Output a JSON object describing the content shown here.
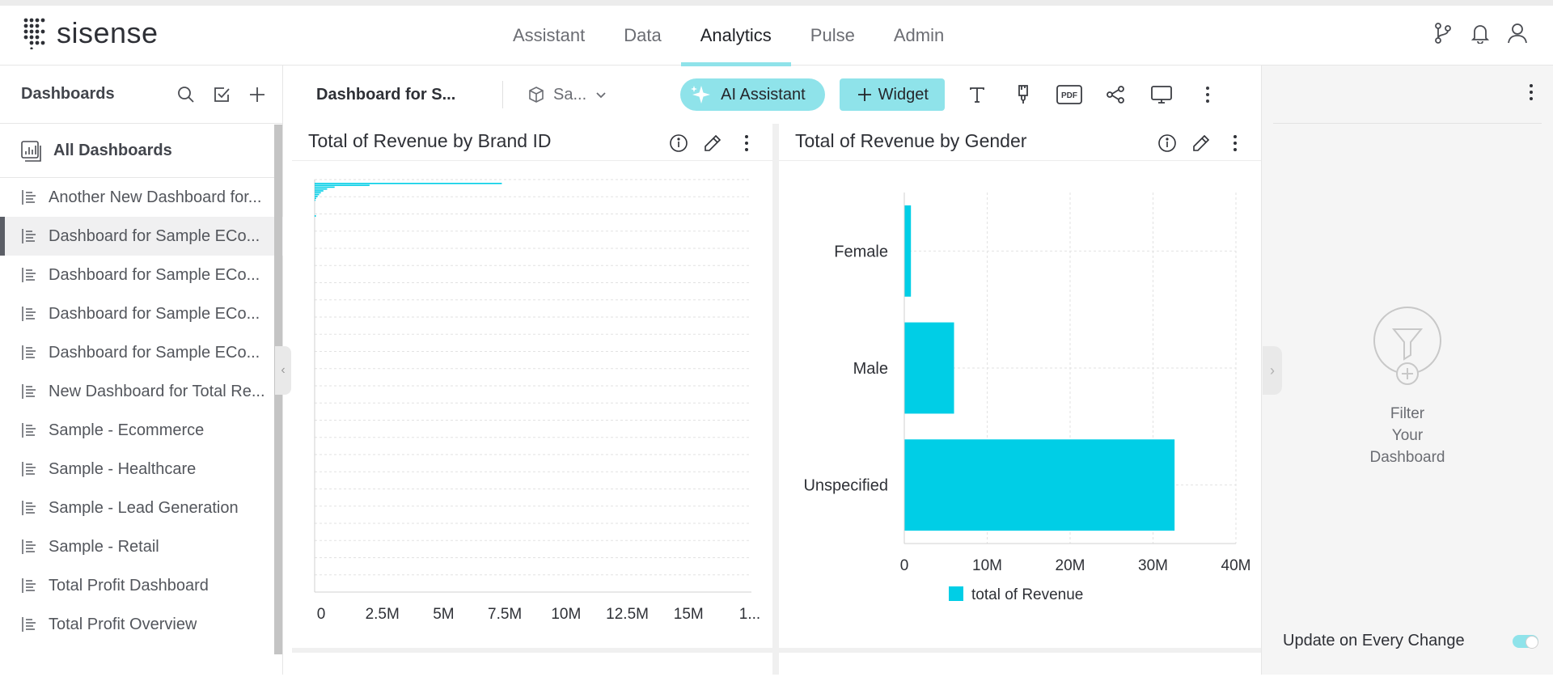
{
  "app": {
    "logo_text": "sisense",
    "nav": [
      {
        "label": "Assistant",
        "active": false
      },
      {
        "label": "Data",
        "active": false
      },
      {
        "label": "Analytics",
        "active": true
      },
      {
        "label": "Pulse",
        "active": false
      },
      {
        "label": "Admin",
        "active": false
      }
    ],
    "top_icons": [
      "git-branch-icon",
      "bell-icon",
      "user-icon"
    ],
    "accent": "#8fe3ea"
  },
  "sidebar": {
    "title": "Dashboards",
    "all_dashboards": "All Dashboards",
    "items": [
      {
        "label": "Another New Dashboard for...",
        "selected": false
      },
      {
        "label": "Dashboard for Sample ECo...",
        "selected": true
      },
      {
        "label": "Dashboard for Sample ECo...",
        "selected": false
      },
      {
        "label": "Dashboard for Sample ECo...",
        "selected": false
      },
      {
        "label": "Dashboard for Sample ECo...",
        "selected": false
      },
      {
        "label": "New Dashboard for Total Re...",
        "selected": false
      },
      {
        "label": "Sample - Ecommerce",
        "selected": false
      },
      {
        "label": "Sample - Healthcare",
        "selected": false
      },
      {
        "label": "Sample - Lead Generation",
        "selected": false
      },
      {
        "label": "Sample - Retail",
        "selected": false
      },
      {
        "label": "Total Profit Dashboard",
        "selected": false
      },
      {
        "label": "Total Profit Overview",
        "selected": false
      }
    ]
  },
  "toolbar": {
    "dashboard_name": "Dashboard for S...",
    "data_model": "Sa...",
    "ai_label": "AI Assistant",
    "widget_label": "Widget",
    "pdf_label": "PDF"
  },
  "filters": {
    "empty_line1": "Filter",
    "empty_line2": "Your",
    "empty_line3": "Dashboard",
    "update_label": "Update on Every Change",
    "update_on": true
  },
  "chart_data": [
    {
      "type": "bar",
      "orientation": "horizontal",
      "title": "Total of Revenue by Brand ID",
      "x_tick_labels": [
        "0",
        "2.5M",
        "5M",
        "7.5M",
        "10M",
        "12.5M",
        "15M",
        "1..."
      ],
      "xlim": [
        0,
        17500000
      ],
      "color": "#00cee6",
      "values": [
        7500000,
        2200000,
        800000,
        500000,
        350000,
        250000,
        180000,
        120000,
        60000,
        30000
      ]
    },
    {
      "type": "bar",
      "orientation": "horizontal",
      "title": "Total of Revenue by Gender",
      "categories": [
        "Female",
        "Male",
        "Unspecified"
      ],
      "series": [
        {
          "name": "total of Revenue",
          "values": [
            800000,
            6000000,
            32600000
          ]
        }
      ],
      "x_tick_labels": [
        "0",
        "10M",
        "20M",
        "30M",
        "40M"
      ],
      "xlim": [
        0,
        40000000
      ],
      "color": "#00cee6",
      "legend": "bottom"
    }
  ]
}
